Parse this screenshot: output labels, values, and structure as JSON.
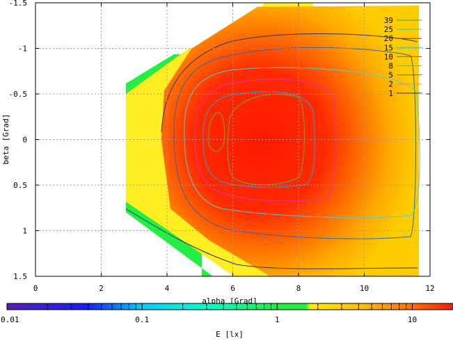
{
  "chart_data": {
    "type": "heatmap",
    "xlabel": "alpha [Grad]",
    "ylabel": "beta [Grad]",
    "colorbar_label": "E [lx]",
    "xlim": [
      0,
      12
    ],
    "ylim": [
      -1.5,
      1.5
    ],
    "y_inverted": true,
    "x_ticks": [
      0,
      2,
      4,
      6,
      8,
      10,
      12
    ],
    "y_ticks": [
      -1.5,
      -1,
      -0.5,
      0,
      0.5,
      1,
      1.5
    ],
    "x_tick_labels": [
      "0",
      "2",
      "4",
      "6",
      "8",
      "10",
      "12"
    ],
    "y_tick_labels": [
      "-1.5",
      "-1",
      "-0.5",
      "0",
      "0.5",
      "1",
      "1.5"
    ],
    "grid": true,
    "colorbar": {
      "scale": "log",
      "range": [
        0.01,
        20
      ],
      "tick_values": [
        0.01,
        0.1,
        1,
        10
      ],
      "tick_labels": [
        "0.01",
        "0.1",
        "1",
        "10"
      ]
    },
    "legend": {
      "placement": "top-right",
      "entries": [
        {
          "label": "39",
          "color": "#33aa33"
        },
        {
          "label": "25",
          "color": "#66bb66"
        },
        {
          "label": "20",
          "color": "#aa2222"
        },
        {
          "label": "15",
          "color": "#44bbbb"
        },
        {
          "label": "10",
          "color": "#cc3333"
        },
        {
          "label": "8",
          "color": "#aaaa22"
        },
        {
          "label": "5",
          "color": "#3366cc"
        },
        {
          "label": "2",
          "color": "#ee8844"
        },
        {
          "label": "1",
          "color": "#333366"
        }
      ]
    },
    "colors": {
      "field_low": "#22ee44",
      "field_yellow": "#ffee00",
      "field_orange": "#ffa500",
      "field_peak": "#ff1a00",
      "contour_1": "#333366",
      "contour_5": "#3399cc",
      "contour_8": "#6688cc",
      "contour_10": "#dd33aa",
      "contour_15": "#55cccc",
      "contour_39": "#66aa33"
    },
    "peak": {
      "x": 6.8,
      "y": 0.0
    }
  }
}
